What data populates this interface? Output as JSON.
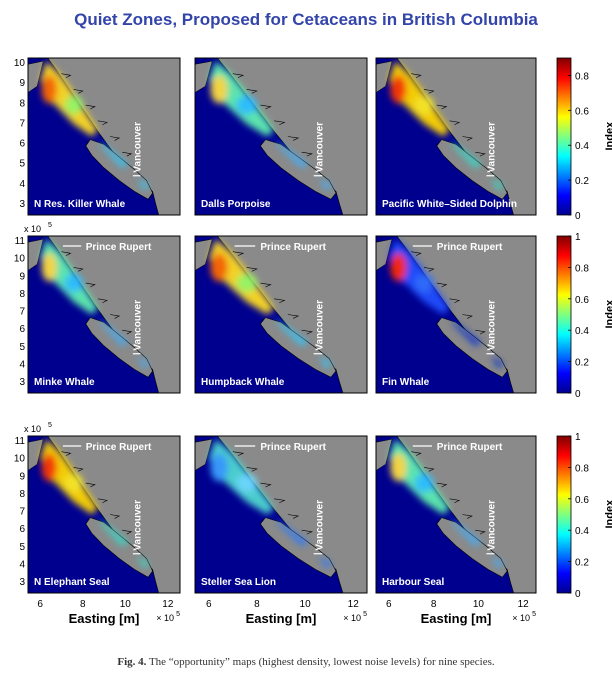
{
  "title": "Quiet Zones, Proposed for Cetaceans in British Columbia",
  "caption_label": "Fig. 4.",
  "caption_text": "The “opportunity” maps (highest density, lowest noise levels) for nine species.",
  "x_axis_label": "Easting [m]",
  "x_exponent": "× 10",
  "exponent_power": "5",
  "y_exponent": "x 10",
  "x_ticks": [
    "6",
    "8",
    "10",
    "12"
  ],
  "colorbar_label": "Index",
  "place_labels": {
    "north": "Prince Rupert",
    "south": "Vancouver"
  },
  "colors": {
    "ocean": "#00008f",
    "land": "#8a8a8a",
    "coast": "#000000",
    "title": "#3344aa"
  },
  "panels": [
    {
      "species": "N Res. Killer Whale",
      "y_ticks": [
        "3",
        "4",
        "5",
        "6",
        "7",
        "8",
        "9",
        "10"
      ],
      "show_prince_rupert": false,
      "hotspot": "warm"
    },
    {
      "species": "Dalls Porpoise",
      "y_ticks": [],
      "show_prince_rupert": false,
      "hotspot": "medium"
    },
    {
      "species": "Pacific White–Sided Dolphin",
      "y_ticks": [],
      "show_prince_rupert": false,
      "hotspot": "hot"
    },
    {
      "species": "Minke Whale",
      "y_ticks": [
        "3",
        "4",
        "5",
        "6",
        "7",
        "8",
        "9",
        "10",
        "11"
      ],
      "show_prince_rupert": true,
      "hotspot": "medium"
    },
    {
      "species": "Humpback Whale",
      "y_ticks": [],
      "show_prince_rupert": true,
      "hotspot": "warm"
    },
    {
      "species": "Fin Whale",
      "y_ticks": [],
      "show_prince_rupert": true,
      "hotspot": "sparse"
    },
    {
      "species": "N Elephant Seal",
      "y_ticks": [
        "3",
        "4",
        "5",
        "6",
        "7",
        "8",
        "9",
        "10",
        "11"
      ],
      "show_prince_rupert": true,
      "hotspot": "hot"
    },
    {
      "species": "Steller Sea Lion",
      "y_ticks": [],
      "show_prince_rupert": true,
      "hotspot": "cool"
    },
    {
      "species": "Harbour Seal",
      "y_ticks": [],
      "show_prince_rupert": true,
      "hotspot": "medium"
    }
  ],
  "colorbars": [
    {
      "ticks": [
        "0",
        "0.2",
        "0.4",
        "0.6",
        "0.8"
      ],
      "max": 0.9
    },
    {
      "ticks": [
        "0",
        "0.2",
        "0.4",
        "0.6",
        "0.8",
        "1"
      ],
      "max": 1.0
    },
    {
      "ticks": [
        "0",
        "0.2",
        "0.4",
        "0.6",
        "0.8",
        "1"
      ],
      "max": 1.0
    }
  ]
}
